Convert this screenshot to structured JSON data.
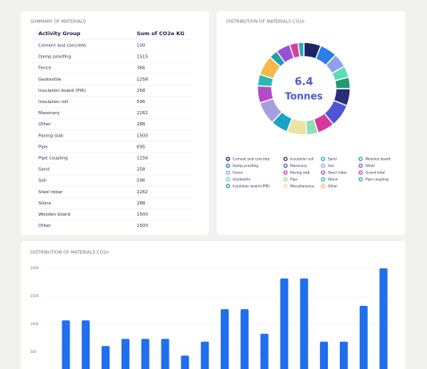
{
  "table": {
    "title": "SUMMARY OF MATERIALS",
    "columns": [
      "Activity Group",
      "Sum of CO2e KG"
    ],
    "rows": [
      [
        "Cement and concrete",
        100
      ],
      [
        "Damp proofing",
        1515
      ],
      [
        "Fence",
        366
      ],
      [
        "Geotextile",
        1256
      ],
      [
        "Insulation board (PIR)",
        258
      ],
      [
        "Insulation roll",
        596
      ],
      [
        "Masonary",
        2262
      ],
      [
        "Other",
        288
      ],
      [
        "Paving slab",
        1500
      ],
      [
        "Pipe",
        695
      ],
      [
        "Pipe coupling",
        1256
      ],
      [
        "Sand",
        258
      ],
      [
        "Soil",
        596
      ],
      [
        "Steel rebar",
        2262
      ],
      [
        "Stone",
        288
      ],
      [
        "Wooden board",
        1500
      ],
      [
        "Other",
        1500
      ]
    ]
  },
  "chart_data": [
    {
      "type": "pie",
      "title": "DISTRIBUTION OF MATERIALS  CO2e",
      "center_value": 6.4,
      "center_label": "Tonnes",
      "categories": [
        "Cement and concrete",
        "Damp proofing",
        "Fence",
        "Geotextile",
        "Insulation board (PIR)",
        "Insulation roll",
        "Masonary",
        "Paving slab",
        "Pipe",
        "Miscellaneous",
        "Sand",
        "Soil",
        "Steel rebar",
        "Stone",
        "Other",
        "Wooden board",
        "Other",
        "Grand total",
        "Pipe coupling"
      ],
      "colors": [
        "#1c2566",
        "#2b7de9",
        "#8fa0ef",
        "#5ddcb8",
        "#1f9b6e",
        "#2a2d78",
        "#4d55d6",
        "#d6389b",
        "#8fe0b6",
        "#ece3a5",
        "#1aa3c9",
        "#a79ee0",
        "#b44ac8",
        "#28b9b0",
        "#f5b948",
        "#1e9fae",
        "#9a4fd6",
        "#d6409b",
        "#2aa7b7"
      ],
      "values": [
        6,
        6,
        5,
        4,
        4,
        6,
        8,
        6,
        4,
        7,
        6,
        8,
        6,
        4,
        7,
        3,
        5,
        3,
        2
      ]
    },
    {
      "type": "bar",
      "title": "DISTRIBUTION OF MATERIALS CO2e",
      "categories": [
        null,
        null,
        null,
        null,
        null,
        null,
        null,
        null,
        null,
        null,
        null,
        null,
        null,
        null,
        null,
        null,
        null
      ],
      "values": [
        1070,
        1070,
        610,
        740,
        740,
        740,
        440,
        690,
        1270,
        1270,
        830,
        1820,
        1820,
        690,
        690,
        1330,
        2000
      ],
      "color": "#1f6fee",
      "ylim": [
        0,
        2000
      ],
      "yticks": [
        500,
        1000,
        1500,
        2000
      ],
      "grid": true
    }
  ]
}
